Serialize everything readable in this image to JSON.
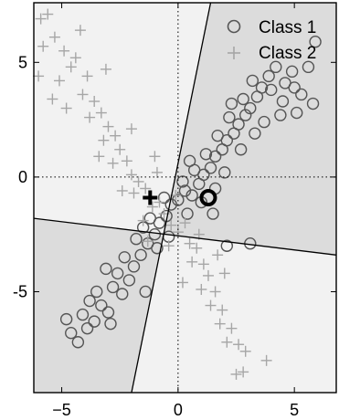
{
  "chart_data": {
    "type": "scatter",
    "title": "",
    "xlabel": "",
    "ylabel": "",
    "xlim": [
      -6.2,
      6.8
    ],
    "ylim": [
      -9.4,
      7.6
    ],
    "grid": false,
    "legend_position": "top-right",
    "x_ticks": [
      -5,
      0,
      5
    ],
    "y_ticks": [
      5,
      0,
      -5
    ],
    "x_tick_labels": [
      "−5",
      "0",
      "5"
    ],
    "y_tick_labels": [
      "5",
      "0",
      "-5"
    ],
    "reference_lines": {
      "x": 0,
      "y": 0,
      "style": "dotted"
    },
    "decision_regions": {
      "colors": {
        "light": "#f2f2f2",
        "dark": "#dcdcdc"
      },
      "boundary_1": {
        "points": [
          [
            -2.0,
            -9.4
          ],
          [
            1.4,
            7.6
          ]
        ]
      },
      "boundary_2": {
        "points": [
          [
            -6.2,
            -1.8
          ],
          [
            6.8,
            -3.4
          ]
        ]
      }
    },
    "series": [
      {
        "name": "Class 1",
        "marker": "circle",
        "color": "#555555",
        "mean": [
          1.3,
          -0.9
        ],
        "values": [
          [
            -4.3,
            -7.2
          ],
          [
            -4.6,
            -6.8
          ],
          [
            -3.9,
            -6.6
          ],
          [
            -4.1,
            -6.0
          ],
          [
            -3.6,
            -6.3
          ],
          [
            -3.3,
            -5.6
          ],
          [
            -3.0,
            -5.9
          ],
          [
            -3.5,
            -5.0
          ],
          [
            -2.8,
            -4.8
          ],
          [
            -2.4,
            -5.1
          ],
          [
            -2.6,
            -4.2
          ],
          [
            -2.1,
            -4.5
          ],
          [
            -1.9,
            -3.9
          ],
          [
            -2.3,
            -3.5
          ],
          [
            -1.6,
            -3.4
          ],
          [
            -1.3,
            -2.9
          ],
          [
            -1.8,
            -2.7
          ],
          [
            -1.0,
            -2.5
          ],
          [
            -0.8,
            -2.0
          ],
          [
            -1.2,
            -1.8
          ],
          [
            -0.5,
            -1.7
          ],
          [
            -0.3,
            -1.2
          ],
          [
            -0.6,
            -0.9
          ],
          [
            0.0,
            -1.0
          ],
          [
            0.3,
            -0.6
          ],
          [
            0.6,
            -0.8
          ],
          [
            0.2,
            -0.2
          ],
          [
            0.9,
            -0.3
          ],
          [
            1.1,
            0.1
          ],
          [
            0.7,
            0.3
          ],
          [
            1.4,
            0.4
          ],
          [
            1.6,
            0.9
          ],
          [
            1.2,
            1.0
          ],
          [
            1.9,
            1.2
          ],
          [
            2.1,
            1.6
          ],
          [
            1.7,
            1.8
          ],
          [
            2.4,
            1.9
          ],
          [
            2.6,
            2.3
          ],
          [
            2.2,
            2.6
          ],
          [
            2.9,
            2.7
          ],
          [
            3.1,
            3.0
          ],
          [
            2.8,
            3.4
          ],
          [
            3.4,
            3.5
          ],
          [
            3.6,
            3.9
          ],
          [
            3.2,
            4.2
          ],
          [
            3.9,
            4.4
          ],
          [
            4.2,
            4.8
          ],
          [
            4.0,
            3.8
          ],
          [
            4.6,
            4.1
          ],
          [
            4.5,
            3.3
          ],
          [
            5.0,
            3.9
          ],
          [
            5.3,
            3.6
          ],
          [
            4.9,
            4.6
          ],
          [
            5.6,
            4.8
          ],
          [
            5.8,
            3.2
          ],
          [
            5.9,
            5.9
          ],
          [
            3.3,
            1.9
          ],
          [
            2.7,
            1.2
          ],
          [
            0.4,
            -1.6
          ],
          [
            -0.4,
            -2.6
          ],
          [
            1.0,
            -1.1
          ],
          [
            1.6,
            -0.5
          ],
          [
            2.0,
            0.2
          ],
          [
            -1.5,
            -2.2
          ],
          [
            -2.9,
            -6.4
          ],
          [
            -3.8,
            -5.4
          ],
          [
            -4.8,
            -6.2
          ],
          [
            -3.1,
            -4.0
          ],
          [
            0.5,
            0.7
          ],
          [
            1.5,
            -1.6
          ],
          [
            2.3,
            3.2
          ],
          [
            4.4,
            2.7
          ],
          [
            3.7,
            2.4
          ],
          [
            5.1,
            2.8
          ],
          [
            -0.9,
            -3.1
          ],
          [
            -1.4,
            -5.0
          ],
          [
            2.1,
            -3.0
          ],
          [
            3.1,
            -2.9
          ]
        ]
      },
      {
        "name": "Class 2",
        "marker": "plus",
        "color": "#a6a6a6",
        "mean": [
          -1.2,
          -0.9
        ],
        "values": [
          [
            -5.9,
            6.9
          ],
          [
            -5.6,
            7.1
          ],
          [
            -5.8,
            5.7
          ],
          [
            -5.3,
            6.1
          ],
          [
            -4.9,
            5.5
          ],
          [
            -4.6,
            4.8
          ],
          [
            -4.4,
            5.2
          ],
          [
            -5.1,
            4.2
          ],
          [
            -3.9,
            4.4
          ],
          [
            -4.1,
            3.6
          ],
          [
            -3.6,
            3.3
          ],
          [
            -3.8,
            2.6
          ],
          [
            -3.3,
            2.8
          ],
          [
            -3.0,
            2.2
          ],
          [
            -3.2,
            1.6
          ],
          [
            -2.7,
            1.8
          ],
          [
            -2.5,
            1.2
          ],
          [
            -2.8,
            0.6
          ],
          [
            -2.2,
            0.7
          ],
          [
            -2.0,
            0.1
          ],
          [
            -1.7,
            -0.2
          ],
          [
            -1.9,
            -0.7
          ],
          [
            -1.4,
            -0.5
          ],
          [
            -1.1,
            -1.3
          ],
          [
            -0.8,
            -1.1
          ],
          [
            -0.6,
            -1.6
          ],
          [
            -0.3,
            -2.1
          ],
          [
            0.0,
            -2.4
          ],
          [
            0.3,
            -2.0
          ],
          [
            0.5,
            -2.9
          ],
          [
            0.8,
            -3.1
          ],
          [
            0.6,
            -3.7
          ],
          [
            1.1,
            -3.8
          ],
          [
            1.3,
            -4.3
          ],
          [
            1.0,
            -4.9
          ],
          [
            1.6,
            -5.0
          ],
          [
            1.4,
            -5.6
          ],
          [
            1.9,
            -5.8
          ],
          [
            1.8,
            -6.4
          ],
          [
            2.3,
            -6.6
          ],
          [
            2.1,
            -7.2
          ],
          [
            2.6,
            -7.3
          ],
          [
            2.9,
            -7.6
          ],
          [
            2.5,
            -8.6
          ],
          [
            2.8,
            -8.5
          ],
          [
            3.8,
            -8.0
          ],
          [
            -4.8,
            3.0
          ],
          [
            -3.4,
            0.9
          ],
          [
            -2.4,
            -0.6
          ],
          [
            -1.5,
            -1.9
          ],
          [
            -0.9,
            0.2
          ],
          [
            -0.1,
            -0.8
          ],
          [
            0.9,
            -2.5
          ],
          [
            1.7,
            -3.4
          ],
          [
            -4.2,
            6.4
          ],
          [
            -3.1,
            4.7
          ],
          [
            -2.0,
            2.1
          ],
          [
            -1.0,
            0.9
          ],
          [
            -0.4,
            -3.0
          ],
          [
            -6.0,
            4.4
          ],
          [
            -5.4,
            3.4
          ],
          [
            0.2,
            -4.6
          ],
          [
            2.0,
            -4.2
          ],
          [
            -1.3,
            -2.8
          ]
        ]
      }
    ]
  },
  "legend": {
    "items": [
      {
        "label": "Class 1",
        "marker": "circle",
        "color": "#555555"
      },
      {
        "label": "Class 2",
        "marker": "plus",
        "color": "#a6a6a6"
      }
    ]
  }
}
